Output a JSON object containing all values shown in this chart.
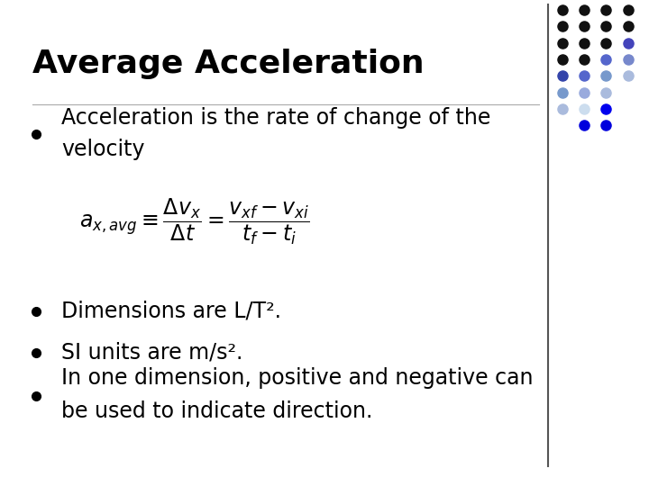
{
  "title": "Average Acceleration",
  "title_fontsize": 26,
  "bg_color": "#ffffff",
  "text_color": "#000000",
  "bullet1_text1": "Acceleration is the rate of change of the",
  "bullet1_text2": "velocity",
  "bullet2_text": "Dimensions are L/T².",
  "bullet3_text": "SI units are m/s².",
  "bullet4_text1": "In one dimension, positive and negative can",
  "bullet4_text2": "be used to indicate direction.",
  "font_size_body": 17,
  "dot_pattern": {
    "rows": 8,
    "cols": 4,
    "colors": [
      [
        "#111111",
        "#111111",
        "#111111",
        "#111111"
      ],
      [
        "#111111",
        "#111111",
        "#111111",
        "#111111"
      ],
      [
        "#111111",
        "#111111",
        "#111111",
        "#4444bb"
      ],
      [
        "#111111",
        "#111111",
        "#5566cc",
        "#7788cc"
      ],
      [
        "#3344aa",
        "#5566cc",
        "#7799cc",
        "#aabbdd"
      ],
      [
        "#7799cc",
        "#99aadd",
        "#aabbdd",
        "#ffffff"
      ],
      [
        "#aabbdd",
        "#ccddee",
        "#0000ee",
        "#ffffff"
      ],
      [
        "#ffffff",
        "#0000dd",
        "#0000dd",
        "#ffffff"
      ]
    ]
  }
}
